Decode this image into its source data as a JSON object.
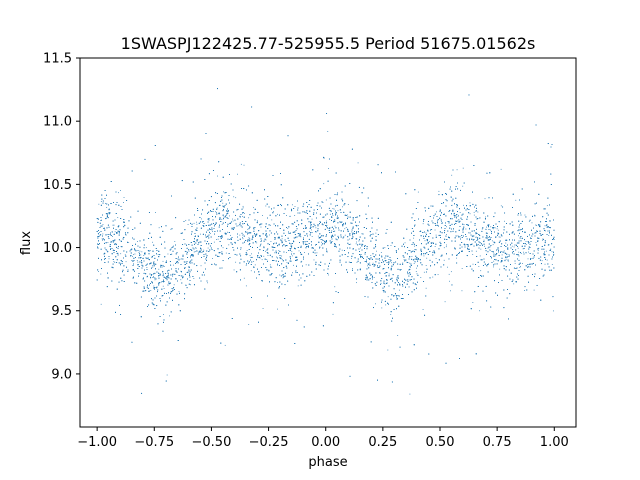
{
  "chart_data": {
    "type": "scatter",
    "title": "1SWASPJ122425.77-525955.5 Period 51675.01562s",
    "xlabel": "phase",
    "ylabel": "flux",
    "xlim": [
      -1.075,
      1.095
    ],
    "ylim": [
      8.58,
      11.5
    ],
    "x_ticks": [
      -1.0,
      -0.75,
      -0.5,
      -0.25,
      0.0,
      0.25,
      0.5,
      0.75,
      1.0
    ],
    "x_tick_labels": [
      "−1.00",
      "−0.75",
      "−0.50",
      "−0.25",
      "0.00",
      "0.25",
      "0.50",
      "0.75",
      "1.00"
    ],
    "y_ticks": [
      9.0,
      9.5,
      10.0,
      10.5,
      11.0,
      11.5
    ],
    "y_tick_labels": [
      "9.0",
      "9.5",
      "10.0",
      "10.5",
      "11.0",
      "11.5"
    ],
    "grid": false,
    "legend": "none",
    "marker_color": "#1f77b4",
    "series": [
      {
        "x_range": [
          -1.0,
          1.0
        ],
        "mean_curve": {
          "phase": [
            -1.0,
            -0.9,
            -0.8,
            -0.7,
            -0.6,
            -0.5,
            -0.45,
            -0.4,
            -0.3,
            -0.2,
            -0.1,
            0.0,
            0.05,
            0.1,
            0.2,
            0.3,
            0.4,
            0.5,
            0.55,
            0.6,
            0.7,
            0.8,
            0.9,
            1.0
          ],
          "flux": [
            10.12,
            10.05,
            9.88,
            9.75,
            9.95,
            10.15,
            10.2,
            10.15,
            10.02,
            9.98,
            10.05,
            10.15,
            10.18,
            10.1,
            9.9,
            9.75,
            9.95,
            10.15,
            10.2,
            10.15,
            10.02,
            9.98,
            10.02,
            10.05
          ]
        },
        "core_scatter_sd": 0.15,
        "approx_point_count": 12000
      }
    ]
  }
}
